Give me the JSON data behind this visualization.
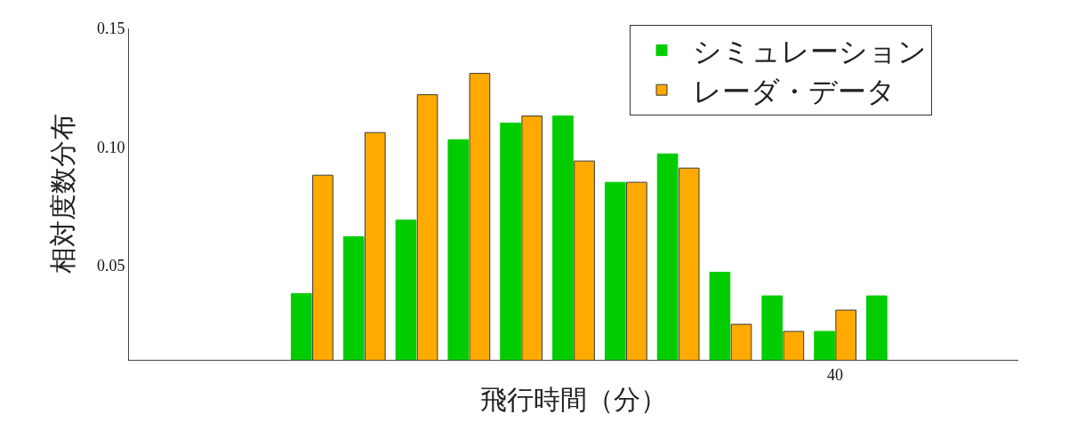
{
  "chart_data": {
    "type": "bar",
    "xlabel": "飛行時間（分）",
    "ylabel": "相対度数分布",
    "categories": [
      null,
      null,
      null,
      null,
      null,
      null,
      null,
      null,
      null,
      null,
      null,
      null,
      null,
      "40",
      null,
      null,
      null
    ],
    "series": [
      {
        "name": "シミュレーション",
        "color": "#00cc00",
        "values": [
          null,
          null,
          null,
          0.038,
          0.062,
          0.069,
          0.103,
          0.11,
          0.113,
          0.085,
          0.097,
          0.047,
          0.037,
          0.022,
          0.037,
          null,
          null
        ]
      },
      {
        "name": "レーダ・データ",
        "color": "#ffaa00",
        "values": [
          null,
          null,
          null,
          0.088,
          0.106,
          0.122,
          0.131,
          0.113,
          0.094,
          0.085,
          0.091,
          0.025,
          0.022,
          0.031,
          null,
          null,
          null
        ]
      }
    ],
    "ylim": [
      0.01,
      0.15
    ],
    "yticks": [
      {
        "value": 0.05,
        "label": "0.05"
      },
      {
        "value": 0.1,
        "label": "0.10"
      },
      {
        "value": 0.15,
        "label": "0.15"
      }
    ],
    "grid": false,
    "legend": "top right"
  }
}
